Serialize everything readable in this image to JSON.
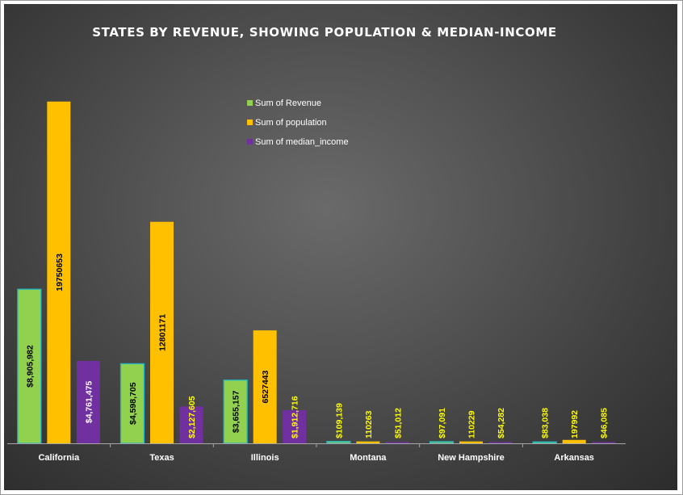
{
  "chart_data": {
    "type": "bar",
    "title": "STATES BY REVENUE, SHOWING POPULATION & MEDIAN-INCOME",
    "xlabel": "",
    "ylabel": "",
    "categories": [
      "California",
      "Texas",
      "Illinois",
      "Montana",
      "New Hampshire",
      "Arkansas"
    ],
    "ylim": [
      0,
      21000000
    ],
    "grid": false,
    "legend_position": "top-center",
    "series": [
      {
        "name": "Sum of Revenue",
        "color": "#92d050",
        "values": [
          8905982,
          4598705,
          3655157,
          109139,
          97091,
          83038
        ],
        "labels": [
          "$8,905,982",
          "$4,598,705",
          "$3,655,157",
          "$109,139",
          "$97,091",
          "$83,038"
        ]
      },
      {
        "name": "Sum of population",
        "color": "#ffc000",
        "values": [
          19750653,
          12801171,
          6527443,
          110263,
          110229,
          197992
        ],
        "labels": [
          "19750653",
          "12801171",
          "6527443",
          "110263",
          "110229",
          "197992"
        ]
      },
      {
        "name": "Sum of median_income",
        "color": "#7030a0",
        "values": [
          4761475,
          2127605,
          1912716,
          51012,
          54282,
          46085
        ],
        "labels": [
          "$4,761,475",
          "$2,127,605",
          "$1,912,716",
          "$51,012",
          "$54,282",
          "$46,085"
        ]
      }
    ]
  }
}
